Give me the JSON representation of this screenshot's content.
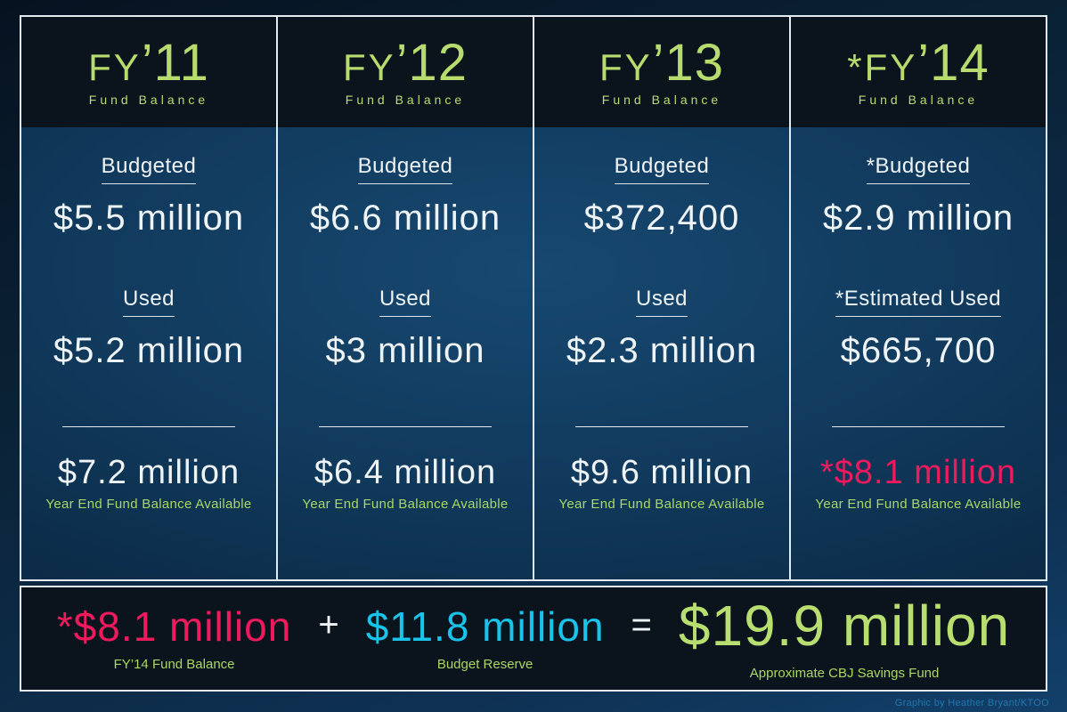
{
  "colors": {
    "lime_green": "#b7dc6d",
    "pink": "#ee1a5e",
    "cyan": "#19c3ea",
    "white_text": "#eef3f6",
    "panel_dark": "#0b141c",
    "body_blue": "#123c5e",
    "credit_blue": "#2277ad"
  },
  "columns": [
    {
      "fy": "FY",
      "yr": "’11",
      "subtitle": "Fund Balance",
      "budgeted_label": "Budgeted",
      "budgeted_value": "$5.5 million",
      "used_label": "Used",
      "used_value": "$5.2 million",
      "balance_value": "$7.2 million",
      "balance_label": "Year End Fund Balance Available"
    },
    {
      "fy": "FY",
      "yr": "’12",
      "subtitle": "Fund Balance",
      "budgeted_label": "Budgeted",
      "budgeted_value": "$6.6 million",
      "used_label": "Used",
      "used_value": "$3 million",
      "balance_value": "$6.4 million",
      "balance_label": "Year End Fund Balance Available"
    },
    {
      "fy": "FY",
      "yr": "’13",
      "subtitle": "Fund Balance",
      "budgeted_label": "Budgeted",
      "budgeted_value": "$372,400",
      "used_label": "Used",
      "used_value": "$2.3 million",
      "balance_value": "$9.6 million",
      "balance_label": "Year End Fund Balance Available"
    },
    {
      "fy": "*FY",
      "yr": "’14",
      "subtitle": "Fund Balance",
      "budgeted_label": "*Budgeted",
      "budgeted_value": "$2.9 million",
      "used_label": "*Estimated Used",
      "used_value": "$665,700",
      "balance_value": "*$8.1 million",
      "balance_label": "Year End Fund Balance Available"
    }
  ],
  "equation": {
    "term1_value": "*$8.1 million",
    "term1_label": "FY’14 Fund Balance",
    "plus": "+",
    "term2_value": "$11.8 million",
    "term2_label": "Budget Reserve",
    "equals": "=",
    "result_value": "$19.9 million",
    "result_label": "Approximate CBJ Savings Fund"
  },
  "credit": "Graphic by Heather Bryant/KTOO",
  "chart_data": {
    "type": "table",
    "categories": [
      "FY’11",
      "FY’12",
      "FY’13",
      "*FY’14"
    ],
    "series": [
      {
        "name": "Budgeted",
        "values_text": [
          "$5.5 million",
          "$6.6 million",
          "$372,400",
          "$2.9 million"
        ],
        "values_musd": [
          5.5,
          6.6,
          0.3724,
          2.9
        ]
      },
      {
        "name": "Used",
        "values_text": [
          "$5.2 million",
          "$3 million",
          "$2.3 million",
          "$665,700"
        ],
        "values_musd": [
          5.2,
          3.0,
          2.3,
          0.6657
        ],
        "note": "FY’14 value is *Estimated Used"
      },
      {
        "name": "Year End Fund Balance Available",
        "values_text": [
          "$7.2 million",
          "$6.4 million",
          "$9.6 million",
          "*$8.1 million"
        ],
        "values_musd": [
          7.2,
          6.4,
          9.6,
          8.1
        ]
      }
    ],
    "summary_equation": {
      "fy14_fund_balance_musd": 8.1,
      "budget_reserve_musd": 11.8,
      "approximate_cbj_savings_fund_musd": 19.9,
      "text": "*$8.1 million + $11.8 million = $19.9 million"
    }
  }
}
